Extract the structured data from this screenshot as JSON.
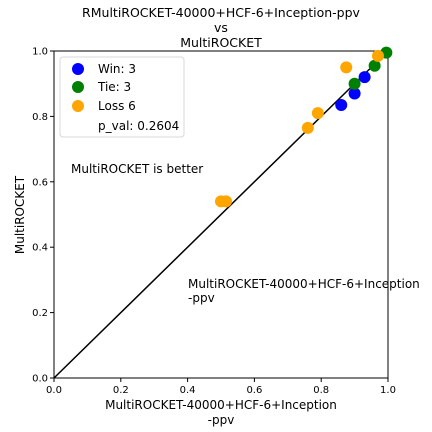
{
  "colors": {
    "win": "#0000ff",
    "tie": "#008000",
    "loss": "#ffa500",
    "diagonal": "#000000"
  },
  "chart_data": {
    "type": "scatter",
    "title_lines": [
      "RMultiROCKET-40000+HCF-6+Inception-ppv",
      "vs",
      "MultiROCKET"
    ],
    "xlabel_lines": [
      "MultiROCKET-40000+HCF-6+Inception",
      "-ppv"
    ],
    "ylabel": "MultiROCKET",
    "xlim": [
      0,
      1
    ],
    "ylim": [
      0,
      1
    ],
    "xticks": [
      "0.0",
      "0.2",
      "0.4",
      "0.6",
      "0.8",
      "1.0"
    ],
    "yticks": [
      "0.0",
      "0.2",
      "0.4",
      "0.6",
      "0.8",
      "1.0"
    ],
    "grid": false,
    "legend_position": "top-left",
    "legend": {
      "win": "Win: 3",
      "tie": "Tie: 3",
      "loss": "Loss 6",
      "pval": "p_val: 0.2604"
    },
    "annotations": {
      "upper": "MultiROCKET is better",
      "lower_lines": [
        "MultiROCKET-40000+HCF-6+Inception",
        "-ppv"
      ]
    },
    "series": [
      {
        "name": "Win: 3",
        "key": "win",
        "points": [
          [
            0.86,
            0.835
          ],
          [
            0.9,
            0.87
          ],
          [
            0.93,
            0.92
          ]
        ]
      },
      {
        "name": "Tie: 3",
        "key": "tie",
        "points": [
          [
            0.9,
            0.9
          ],
          [
            0.96,
            0.955
          ],
          [
            0.995,
            0.995
          ]
        ]
      },
      {
        "name": "Loss 6",
        "key": "loss",
        "points": [
          [
            0.76,
            0.765
          ],
          [
            0.79,
            0.81
          ],
          [
            0.875,
            0.95
          ],
          [
            0.97,
            0.985
          ],
          [
            0.5,
            0.54
          ],
          [
            0.515,
            0.54
          ]
        ]
      }
    ]
  }
}
